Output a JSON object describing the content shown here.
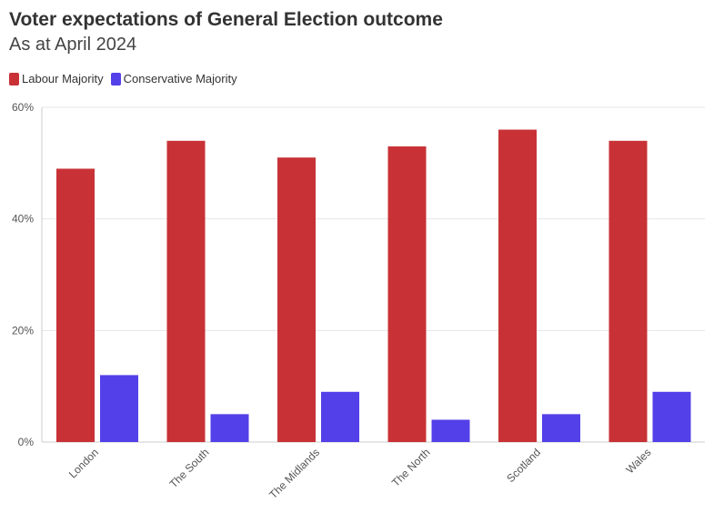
{
  "title": "Voter expectations of General Election outcome",
  "subtitle": "As at April 2024",
  "colors": {
    "labour": "#c83236",
    "conservative": "#5440e8",
    "grid": "#e6e6e6",
    "axis": "#cccccc",
    "tick_text": "#555555"
  },
  "legend": [
    {
      "label": "Labour Majority",
      "color": "#c83236"
    },
    {
      "label": "Conservative Majority",
      "color": "#5440e8"
    }
  ],
  "chart_data": {
    "type": "bar",
    "title": "Voter expectations of General Election outcome",
    "subtitle": "As at April 2024",
    "xlabel": "",
    "ylabel": "",
    "categories": [
      "London",
      "The South",
      "The Midlands",
      "The North",
      "Scotland",
      "Wales"
    ],
    "series": [
      {
        "name": "Labour Majority",
        "color": "#c83236",
        "values": [
          49,
          54,
          51,
          53,
          56,
          54
        ]
      },
      {
        "name": "Conservative Majority",
        "color": "#5440e8",
        "values": [
          12,
          5,
          9,
          4,
          5,
          9
        ]
      }
    ],
    "ylim": [
      0,
      60
    ],
    "yticks": [
      0,
      20,
      40,
      60
    ],
    "ytick_labels": [
      "0%",
      "20%",
      "40%",
      "60%"
    ],
    "grid": true,
    "legend_position": "top-left"
  }
}
